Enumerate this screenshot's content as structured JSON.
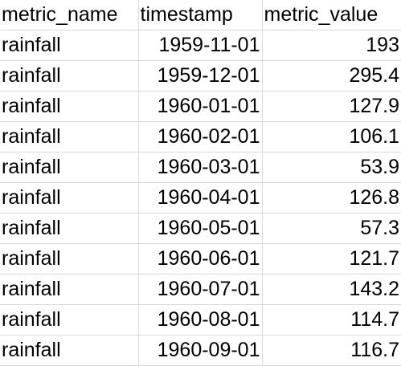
{
  "table": {
    "headers": [
      "metric_name",
      "timestamp",
      "metric_value"
    ],
    "rows": [
      [
        "rainfall",
        "1959-11-01",
        "193"
      ],
      [
        "rainfall",
        "1959-12-01",
        "295.4"
      ],
      [
        "rainfall",
        "1960-01-01",
        "127.9"
      ],
      [
        "rainfall",
        "1960-02-01",
        "106.1"
      ],
      [
        "rainfall",
        "1960-03-01",
        "53.9"
      ],
      [
        "rainfall",
        "1960-04-01",
        "126.8"
      ],
      [
        "rainfall",
        "1960-05-01",
        "57.3"
      ],
      [
        "rainfall",
        "1960-06-01",
        "121.7"
      ],
      [
        "rainfall",
        "1960-07-01",
        "143.2"
      ],
      [
        "rainfall",
        "1960-08-01",
        "114.7"
      ],
      [
        "rainfall",
        "1960-09-01",
        "116.7"
      ]
    ]
  }
}
